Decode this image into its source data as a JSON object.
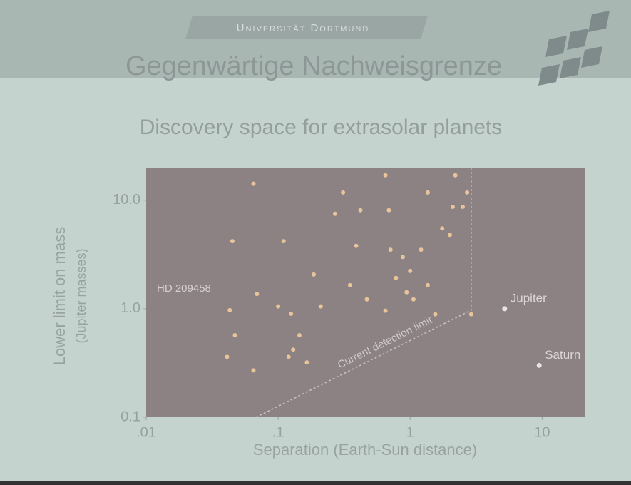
{
  "header": "Universität Dortmund",
  "chart_data": {
    "type": "scatter",
    "title": "Gegenwärtige Nachweisgrenze",
    "subtitle": "Discovery space for extrasolar planets",
    "x_label": "Separation (Earth-Sun distance)",
    "y_label": [
      "Lower limit on mass",
      "(Jupiter masses)"
    ],
    "log_x": true,
    "log_y": true,
    "xlim": [
      0.01,
      21
    ],
    "ylim": [
      0.1,
      20
    ],
    "xticks": [
      {
        "value": 0.01,
        "label": ".01"
      },
      {
        "value": 0.1,
        "label": ".1"
      },
      1,
      10
    ],
    "yticks": [
      0.1,
      {
        "value": 1,
        "label": "1.0"
      },
      {
        "value": 10,
        "label": "10.0"
      }
    ],
    "color": "#e9c49a",
    "x": [
      0.065,
      0.045,
      0.069,
      0.043,
      0.047,
      0.041,
      0.065,
      0.11,
      0.125,
      0.145,
      0.13,
      0.186,
      0.21,
      0.31,
      0.27,
      0.42,
      0.39,
      0.35,
      0.47,
      0.69,
      0.71,
      0.78,
      0.94,
      1.0,
      0.65,
      1.36,
      1.36,
      1.55,
      1.75,
      2.1,
      2.2,
      2.5,
      2.7,
      2.0,
      0.88,
      1.06,
      2.9,
      0.12,
      0.1,
      0.165,
      0.65,
      1.21
    ],
    "y": [
      14.2,
      4.2,
      1.37,
      0.97,
      0.57,
      0.36,
      0.27,
      4.2,
      0.9,
      0.57,
      0.42,
      2.07,
      1.05,
      11.8,
      7.5,
      8.1,
      3.8,
      1.65,
      1.22,
      8.1,
      3.5,
      1.92,
      1.42,
      2.23,
      0.96,
      1.65,
      11.8,
      0.89,
      5.5,
      8.7,
      17,
      8.7,
      11.8,
      4.8,
      3.0,
      1.22,
      0.89,
      0.36,
      1.05,
      0.32,
      17,
      3.5
    ],
    "solar_planets": [
      {
        "label": "Jupiter",
        "x": 5.2,
        "y": 1.0
      },
      {
        "label": "Saturn",
        "x": 9.5,
        "y": 0.3
      }
    ],
    "detection_limit": {
      "label": "Current detection limit",
      "x": [
        0.068,
        2.9,
        2.9
      ],
      "y": [
        0.1,
        0.97,
        20
      ]
    },
    "annotation": "HD 209458"
  }
}
